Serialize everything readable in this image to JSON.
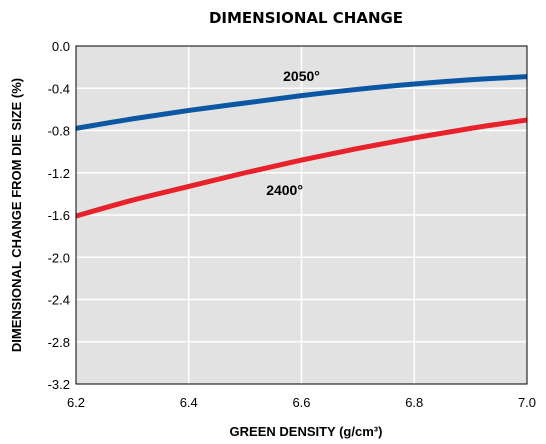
{
  "chart_data": {
    "type": "line",
    "title": "DIMENSIONAL CHANGE",
    "xlabel": "GREEN DENSITY (g/cm³)",
    "ylabel": "DIMENSIONAL CHANGE FROM DIE SIZE  (%)",
    "xlim": [
      6.2,
      7.0
    ],
    "ylim": [
      -3.2,
      0.0
    ],
    "x_ticks": [
      "6.2",
      "6.4",
      "6.6",
      "6.8",
      "7.0"
    ],
    "y_ticks": [
      "0.0",
      "-0.4",
      "-0.8",
      "-1.2",
      "-1.6",
      "-2.0",
      "-2.4",
      "-2.8",
      "-3.2"
    ],
    "x_tick_values": [
      6.2,
      6.4,
      6.6,
      6.8,
      7.0
    ],
    "y_tick_values": [
      0.0,
      -0.4,
      -0.8,
      -1.2,
      -1.6,
      -2.0,
      -2.4,
      -2.8,
      -3.2
    ],
    "grid": true,
    "background_color": "#e2e2e2",
    "series": [
      {
        "name": "2050°",
        "color": "#0b57a4",
        "x": [
          6.2,
          6.3,
          6.4,
          6.5,
          6.6,
          6.7,
          6.8,
          6.9,
          7.0
        ],
        "y": [
          -0.78,
          -0.69,
          -0.61,
          -0.54,
          -0.47,
          -0.41,
          -0.36,
          -0.32,
          -0.29
        ]
      },
      {
        "name": "2400°",
        "color": "#e8222a",
        "x": [
          6.2,
          6.3,
          6.4,
          6.5,
          6.6,
          6.7,
          6.8,
          6.9,
          7.0
        ],
        "y": [
          -1.61,
          -1.46,
          -1.33,
          -1.2,
          -1.08,
          -0.97,
          -0.87,
          -0.78,
          -0.7
        ]
      }
    ],
    "annotations": [
      {
        "text": "2050°",
        "x": 6.6,
        "y": -0.33,
        "series": 0
      },
      {
        "text": "2400°",
        "x": 6.57,
        "y": -1.41,
        "series": 1
      }
    ]
  }
}
